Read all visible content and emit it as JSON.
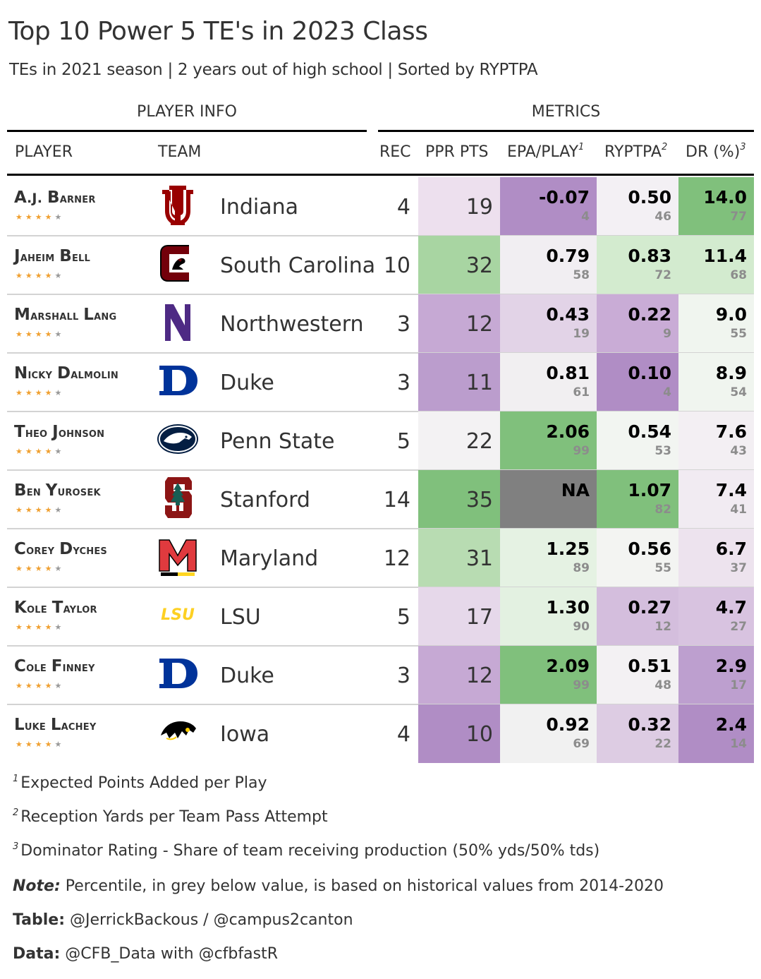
{
  "header": {
    "title": "Top 10 Power 5 TE's in 2023 Class",
    "subtitle": "TEs in 2021 season | 2 years out of high school | Sorted by RYPTPA"
  },
  "groups": {
    "player_info": "PLAYER INFO",
    "metrics": "METRICS"
  },
  "columns": {
    "player": "PLAYER",
    "team": "TEAM",
    "rec": "REC",
    "ppr": "PPR PTS",
    "epa": "EPA/PLAY",
    "epa_note": "1",
    "ryptpa": "RYPTPA",
    "ryptpa_note": "2",
    "dr": "DR (%)",
    "dr_note": "3"
  },
  "colors": {
    "purple_strong": "#ae8bc4",
    "green_strong": "#80c07c",
    "na_grey": "#808080",
    "star": "#f0a030"
  },
  "rows": [
    {
      "first": "A.J.",
      "last": "Barner",
      "stars": 4,
      "team": "Indiana",
      "logo": "indiana-logo",
      "rec": "4",
      "ppr": "19",
      "epa": "-0.07",
      "epa_pct": "4",
      "ryptpa": "0.50",
      "ryptpa_pct": "46",
      "dr": "14.0",
      "dr_pct": "77",
      "ppr_color": "#ede0ee",
      "epa_color": "#b08dc5",
      "ryptpa_color": "#f3f0f4",
      "dr_color": "#80c07c"
    },
    {
      "first": "Jaheim",
      "last": "Bell",
      "stars": 4,
      "team": "South Carolina",
      "logo": "south-carolina-logo",
      "rec": "10",
      "ppr": "32",
      "epa": "0.79",
      "epa_pct": "58",
      "ryptpa": "0.83",
      "ryptpa_pct": "72",
      "dr": "11.4",
      "dr_pct": "68",
      "ppr_color": "#a8d5a2",
      "epa_color": "#f1eef2",
      "ryptpa_color": "#d3ebcf",
      "dr_color": "#d3ebcf"
    },
    {
      "first": "Marshall",
      "last": "Lang",
      "stars": 4,
      "team": "Northwestern",
      "logo": "northwestern-logo",
      "rec": "3",
      "ppr": "12",
      "epa": "0.43",
      "epa_pct": "19",
      "ryptpa": "0.22",
      "ryptpa_pct": "9",
      "dr": "9.0",
      "dr_pct": "55",
      "ppr_color": "#c6a9d4",
      "epa_color": "#e2d3e7",
      "ryptpa_color": "#c9acd6",
      "dr_color": "#f0f5ef"
    },
    {
      "first": "Nicky",
      "last": "Dalmolin",
      "stars": 4,
      "team": "Duke",
      "logo": "duke-logo",
      "rec": "3",
      "ppr": "11",
      "epa": "0.81",
      "epa_pct": "61",
      "ryptpa": "0.10",
      "ryptpa_pct": "4",
      "dr": "8.9",
      "dr_pct": "54",
      "ppr_color": "#bb9dcd",
      "epa_color": "#f1eff1",
      "ryptpa_color": "#b08dc5",
      "dr_color": "#f0f5ef"
    },
    {
      "first": "Theo",
      "last": "Johnson",
      "stars": 4,
      "team": "Penn State",
      "logo": "penn-state-logo",
      "rec": "5",
      "ppr": "22",
      "epa": "2.06",
      "epa_pct": "99",
      "ryptpa": "0.54",
      "ryptpa_pct": "53",
      "dr": "7.6",
      "dr_pct": "43",
      "ppr_color": "#f3f2f3",
      "epa_color": "#80c07c",
      "ryptpa_color": "#f2f5f1",
      "dr_color": "#f3eff3"
    },
    {
      "first": "Ben",
      "last": "Yurosek",
      "stars": 4,
      "team": "Stanford",
      "logo": "stanford-logo",
      "rec": "14",
      "ppr": "35",
      "epa": "NA",
      "epa_pct": "",
      "ryptpa": "1.07",
      "ryptpa_pct": "82",
      "dr": "7.4",
      "dr_pct": "41",
      "ppr_color": "#80c07c",
      "epa_color": "#808080",
      "ryptpa_color": "#80c07c",
      "dr_color": "#f1ebf2"
    },
    {
      "first": "Corey",
      "last": "Dyches",
      "stars": 4,
      "team": "Maryland",
      "logo": "maryland-logo",
      "rec": "12",
      "ppr": "31",
      "epa": "1.25",
      "epa_pct": "89",
      "ryptpa": "0.56",
      "ryptpa_pct": "55",
      "dr": "6.7",
      "dr_pct": "37",
      "ppr_color": "#b8dcb2",
      "epa_color": "#e5f2e3",
      "ryptpa_color": "#f3f4f2",
      "dr_color": "#ede3ee"
    },
    {
      "first": "Kole",
      "last": "Taylor",
      "stars": 4,
      "team": "LSU",
      "logo": "lsu-logo",
      "rec": "5",
      "ppr": "17",
      "epa": "1.30",
      "epa_pct": "90",
      "ryptpa": "0.27",
      "ryptpa_pct": "12",
      "dr": "4.7",
      "dr_pct": "27",
      "ppr_color": "#e6d8ea",
      "epa_color": "#e3f1e1",
      "ryptpa_color": "#d4bedd",
      "dr_color": "#d8c3e0"
    },
    {
      "first": "Cole",
      "last": "Finney",
      "stars": 4,
      "team": "Duke",
      "logo": "duke-logo",
      "rec": "3",
      "ppr": "12",
      "epa": "2.09",
      "epa_pct": "99",
      "ryptpa": "0.51",
      "ryptpa_pct": "48",
      "dr": "2.9",
      "dr_pct": "17",
      "ppr_color": "#c6a9d4",
      "epa_color": "#80c07c",
      "ryptpa_color": "#f3f1f3",
      "dr_color": "#bd9fcf"
    },
    {
      "first": "Luke",
      "last": "Lachey",
      "stars": 4,
      "team": "Iowa",
      "logo": "iowa-logo",
      "rec": "4",
      "ppr": "10",
      "epa": "0.92",
      "epa_pct": "69",
      "ryptpa": "0.32",
      "ryptpa_pct": "22",
      "dr": "2.4",
      "dr_pct": "14",
      "ppr_color": "#b08dc5",
      "epa_color": "#f1f1f1",
      "ryptpa_color": "#ddcce3",
      "dr_color": "#b08dc5"
    }
  ],
  "footnotes": {
    "f1_mark": "1",
    "f1": "Expected Points Added per Play",
    "f2_mark": "2",
    "f2": "Reception Yards per Team Pass Attempt",
    "f3_mark": "3",
    "f3": "Dominator Rating - Share of team receiving production (50% yds/50% tds)",
    "note_label": "Note:",
    "note": " Percentile, in grey below value, is based on historical values from 2014-2020",
    "table_label": "Table:",
    "table": " @JerrickBackous / @campus2canton",
    "data_label": "Data:",
    "data": " @CFB_Data with @cfbfastR"
  }
}
